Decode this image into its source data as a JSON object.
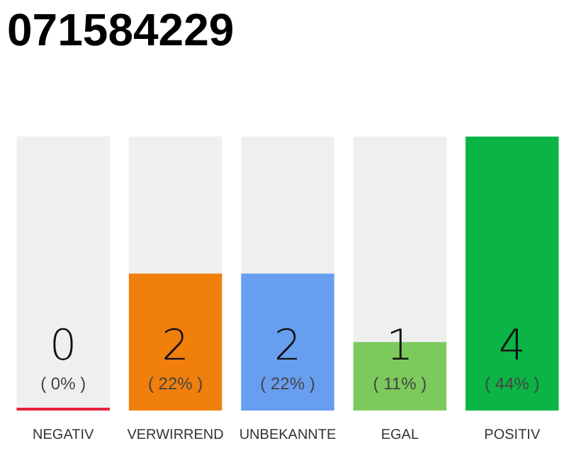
{
  "chart_data": {
    "type": "bar",
    "title": "071584229",
    "categories": [
      "NEGATIV",
      "VERWIRREND",
      "UNBEKANNTE",
      "EGAL",
      "POSITIV"
    ],
    "stacked": true,
    "ylim": [
      0,
      4
    ],
    "tick_labels": "x",
    "series": [
      {
        "colors": [
          "#e8213a",
          "#f07f0c",
          "#679ef0",
          "#7dca5c",
          "#0bb545"
        ],
        "values": [
          0,
          2,
          2,
          1,
          4
        ],
        "value_labels": [
          "0",
          "2",
          "2",
          "1",
          "4"
        ]
      },
      {
        "color": "#efefef",
        "values": [
          4,
          2,
          2,
          3,
          0
        ]
      }
    ],
    "annotations": [
      "( 0% )",
      "( 22% )",
      "( 22% )",
      "( 11% )",
      "( 44% )"
    ]
  }
}
